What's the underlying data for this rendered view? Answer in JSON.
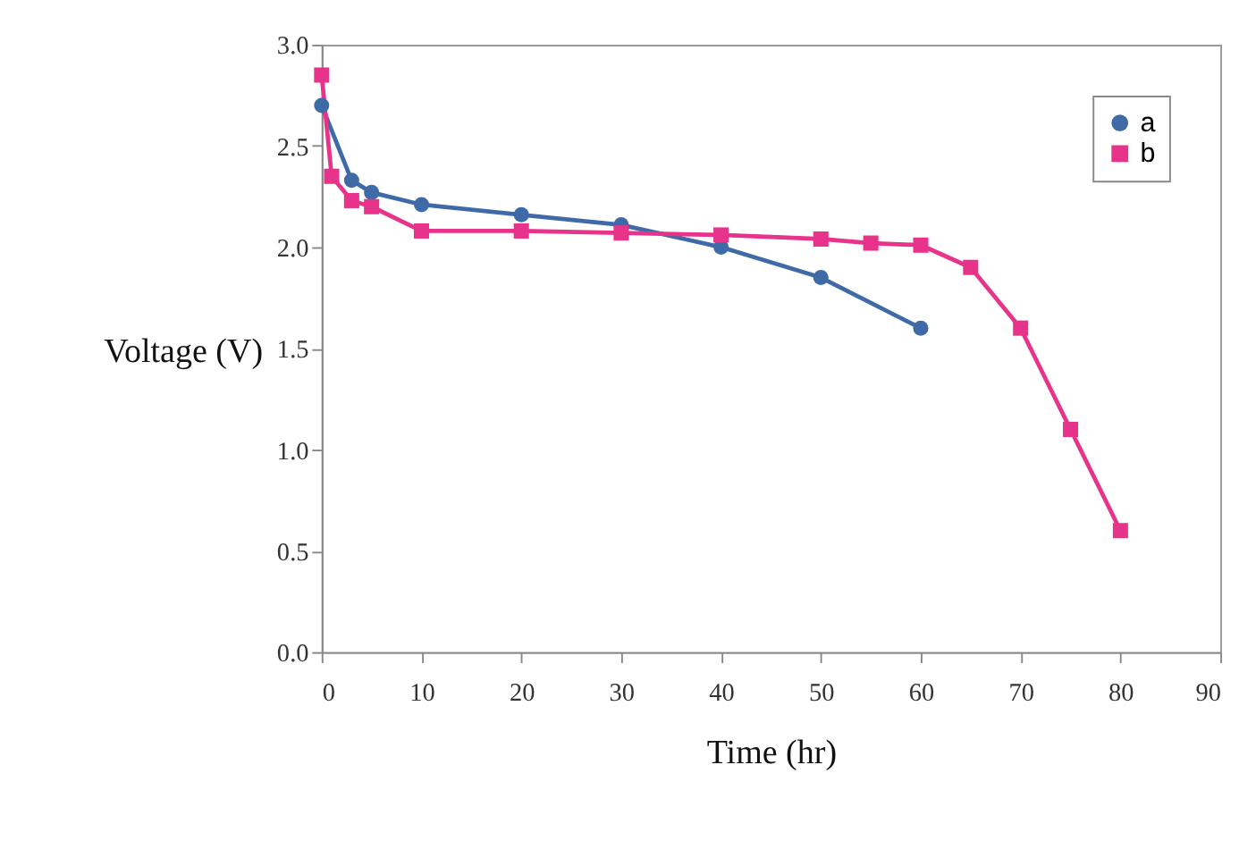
{
  "chart_data": {
    "type": "line",
    "xlabel": "Time (hr)",
    "ylabel": "Voltage (V)",
    "xlim": [
      0,
      90
    ],
    "xticks": [
      0,
      10,
      20,
      30,
      40,
      50,
      60,
      70,
      80,
      90
    ],
    "ylim": [
      0,
      3
    ],
    "yticks": [
      {
        "value": 0,
        "label": "0.0"
      },
      {
        "value": 0.5,
        "label": "0.5"
      },
      {
        "value": 1,
        "label": "1.0"
      },
      {
        "value": 1.5,
        "label": "1.5"
      },
      {
        "value": 2,
        "label": "2.0"
      },
      {
        "value": 2.5,
        "label": "2.5"
      },
      {
        "value": 3,
        "label": "3.0"
      }
    ],
    "grid": false,
    "legend": "top right",
    "line_style": "solid",
    "series": [
      {
        "name": "a",
        "color": "#3f6aa8",
        "marker": "circle",
        "x": [
          0,
          3,
          5,
          10,
          20,
          30,
          40,
          50,
          60
        ],
        "values": [
          2.7,
          2.33,
          2.27,
          2.21,
          2.16,
          2.11,
          2.0,
          1.85,
          1.6
        ]
      },
      {
        "name": "b",
        "color": "#e8338a",
        "marker": "square",
        "x": [
          0,
          1,
          3,
          5,
          10,
          20,
          30,
          40,
          50,
          55,
          60,
          65,
          70,
          75,
          80
        ],
        "values": [
          2.85,
          2.35,
          2.23,
          2.2,
          2.08,
          2.08,
          2.07,
          2.06,
          2.04,
          2.02,
          2.01,
          1.9,
          1.6,
          1.1,
          0.6
        ]
      }
    ]
  }
}
